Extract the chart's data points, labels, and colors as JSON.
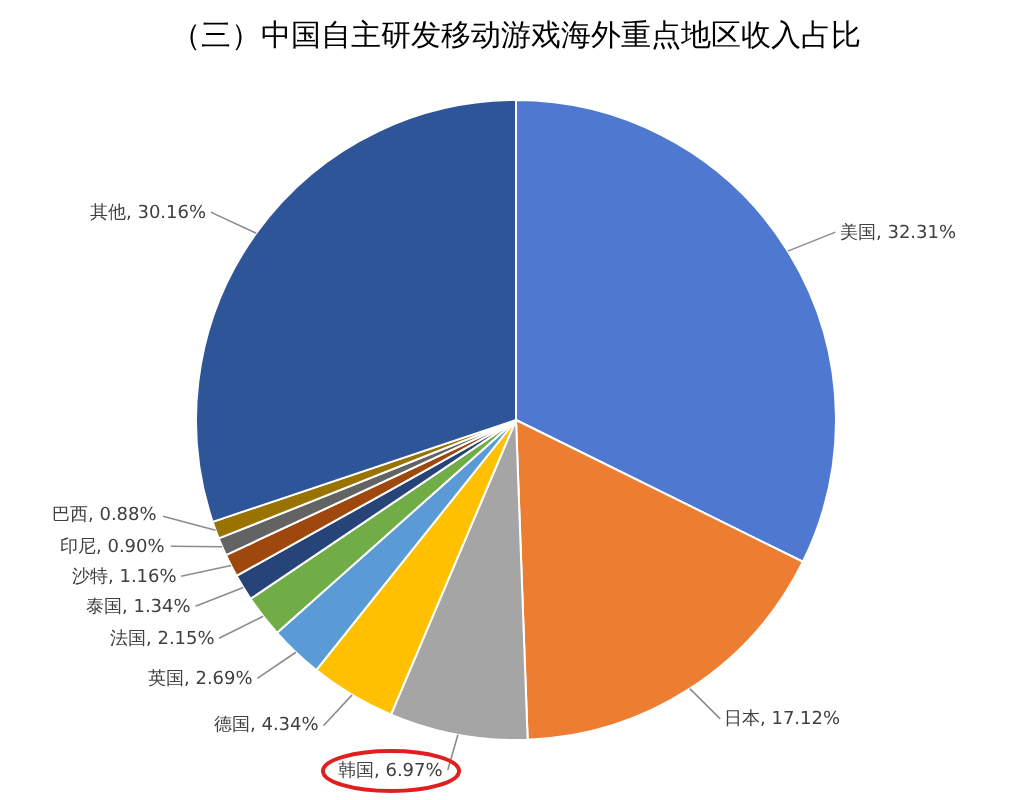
{
  "chart_data": {
    "type": "pie",
    "title": "（三）中国自主研发移动游戏海外重点地区收入占比",
    "categories": [
      "美国",
      "日本",
      "韩国",
      "德国",
      "英国",
      "法国",
      "泰国",
      "沙特",
      "印尼",
      "巴西",
      "其他"
    ],
    "values": [
      32.31,
      17.12,
      6.97,
      4.34,
      2.69,
      2.15,
      1.34,
      1.16,
      0.9,
      0.88,
      30.16
    ],
    "value_labels": [
      "32.31%",
      "17.12%",
      "6.97%",
      "4.34%",
      "2.69%",
      "2.15%",
      "1.34%",
      "1.16%",
      "0.90%",
      "0.88%",
      "30.16%"
    ],
    "colors": [
      "#4f79d0",
      "#ed7d31",
      "#a5a5a5",
      "#ffc000",
      "#5b9bd5",
      "#70ad47",
      "#264478",
      "#9e480e",
      "#636363",
      "#997300",
      "#2e5597"
    ],
    "legend": false
  }
}
